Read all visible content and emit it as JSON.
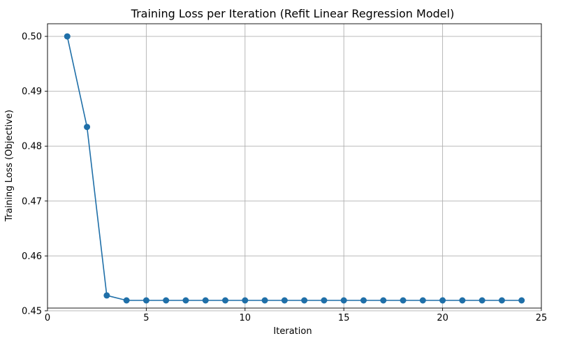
{
  "chart_data": {
    "type": "line",
    "title": "Training Loss per Iteration (Refit Linear Regression Model)",
    "xlabel": "Iteration",
    "ylabel": "Training Loss (Objective)",
    "xlim": [
      0,
      25
    ],
    "ylim": [
      0.4505,
      0.5023
    ],
    "xticks": [
      0,
      5,
      10,
      15,
      20,
      25
    ],
    "yticks": [
      0.45,
      0.46,
      0.47,
      0.48,
      0.49,
      0.5
    ],
    "ytick_labels": [
      "0.45",
      "0.46",
      "0.47",
      "0.48",
      "0.49",
      "0.50"
    ],
    "grid": true,
    "marker": "circle",
    "color": "#1f6fa8",
    "series": [
      {
        "x": [
          1,
          2,
          3,
          4,
          5,
          6,
          7,
          8,
          9,
          10,
          11,
          12,
          13,
          14,
          15,
          16,
          17,
          18,
          19,
          20,
          21,
          22,
          23,
          24
        ],
        "values": [
          0.5,
          0.4835,
          0.4528,
          0.4519,
          0.4519,
          0.4519,
          0.4519,
          0.4519,
          0.4519,
          0.4519,
          0.4519,
          0.4519,
          0.4519,
          0.4519,
          0.4519,
          0.4519,
          0.4519,
          0.4519,
          0.4519,
          0.4519,
          0.4519,
          0.4519,
          0.4519,
          0.4519
        ]
      }
    ]
  }
}
